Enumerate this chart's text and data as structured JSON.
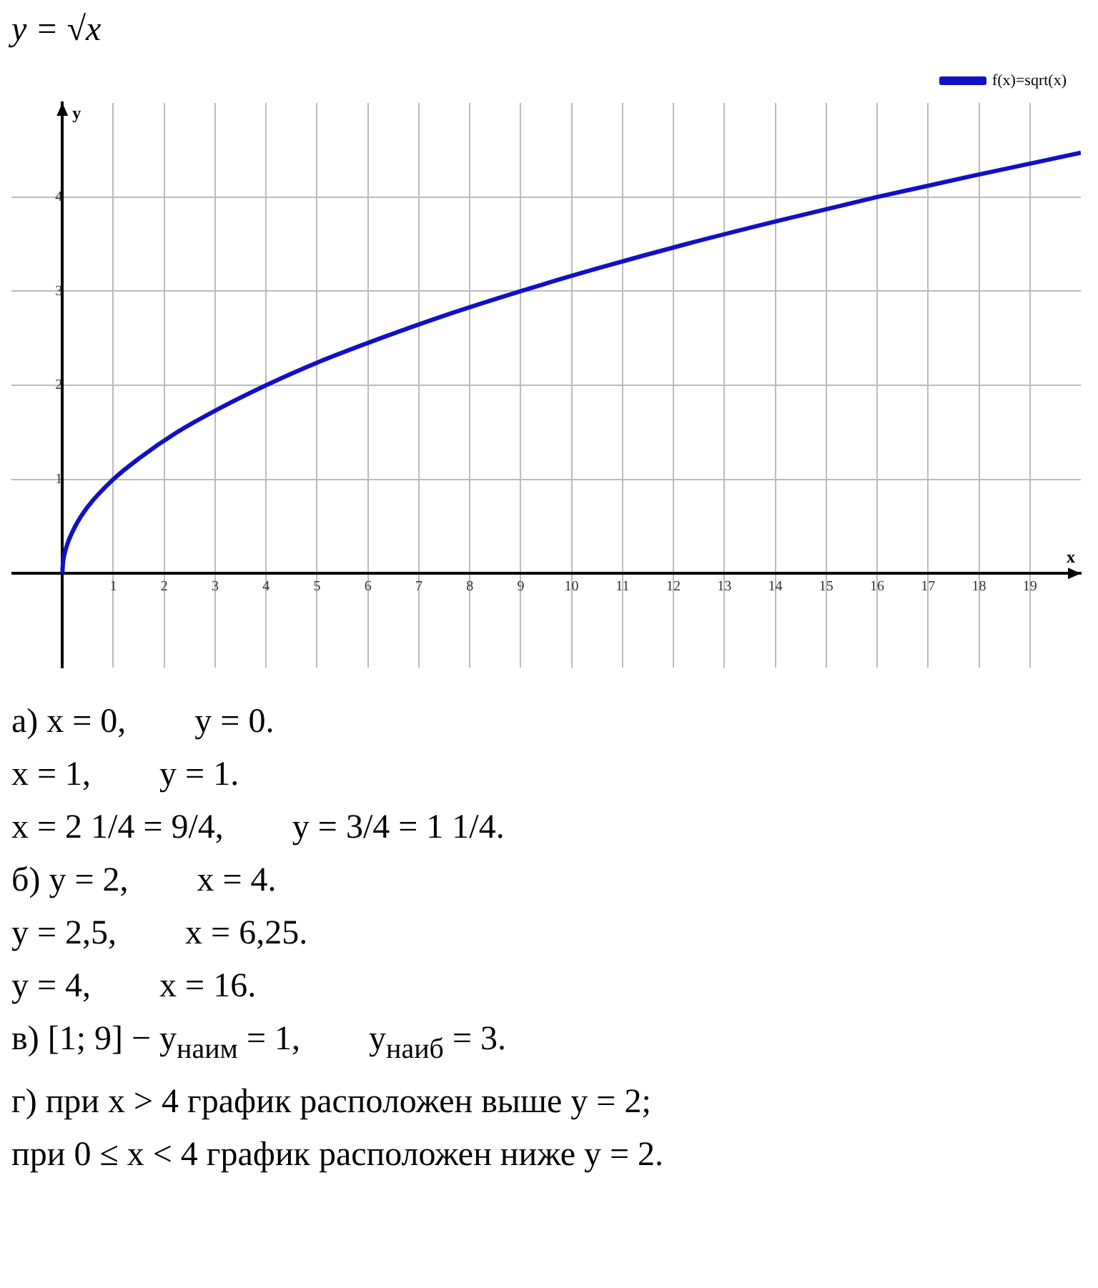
{
  "chart_data": {
    "type": "line",
    "title": "y = √x",
    "xlabel": "x",
    "ylabel": "y",
    "x": [
      0,
      0.01,
      0.04,
      0.09,
      0.25,
      0.5,
      1,
      1.5,
      2.25,
      3,
      4,
      5,
      6.25,
      7.5,
      9,
      10.5,
      12.25,
      14,
      16,
      18,
      20
    ],
    "series": [
      {
        "name": "f(x)=sqrt(x)",
        "color": "#1010c8",
        "values": [
          0,
          0.1,
          0.2,
          0.3,
          0.5,
          0.71,
          1,
          1.22,
          1.5,
          1.73,
          2,
          2.24,
          2.5,
          2.74,
          3,
          3.24,
          3.5,
          3.74,
          4,
          4.24,
          4.47
        ]
      }
    ],
    "xlim": [
      -1,
      20
    ],
    "ylim": [
      -1,
      5
    ],
    "xticks": [
      1,
      2,
      3,
      4,
      5,
      6,
      7,
      8,
      9,
      10,
      11,
      12,
      13,
      14,
      15,
      16,
      17,
      18,
      19
    ],
    "yticks": [
      1,
      2,
      3,
      4
    ],
    "grid": true,
    "legend": "top right",
    "marker": "none",
    "line_style": "solid",
    "annotations": [
      "а) x = 0,        y = 0.",
      "x = 1,        y = 1.",
      "x = 2 1/4 = 9/4,        y = 3/4 = 1 1/4.",
      "б) y = 2,        x = 4.",
      "y = 2,5,        x = 6,25.",
      "y = 4,        x = 16.",
      "в) [1; 9] − y$_{наим}$ = 1,        y$_{наиб}$ = 3.",
      "г) при x > 4 график расположен выше y = 2;",
      "при 0 ≤ x < 4 график расположен ниже y = 2."
    ]
  }
}
